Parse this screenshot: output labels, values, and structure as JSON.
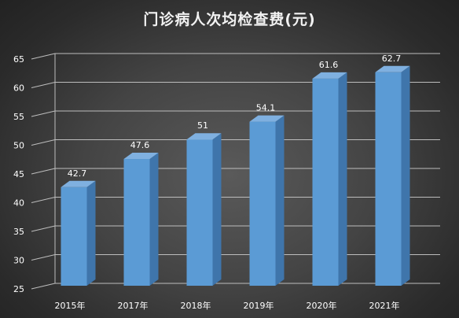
{
  "chart_data": {
    "type": "bar",
    "title": "门诊病人次均检查费(元)",
    "categories": [
      "2015年",
      "2017年",
      "2018年",
      "2019年",
      "2020年",
      "2021年"
    ],
    "values": [
      42.7,
      47.6,
      51,
      54.1,
      61.6,
      62.7
    ],
    "data_labels": [
      "42.7",
      "47.6",
      "51",
      "54.1",
      "61.6",
      "62.7"
    ],
    "y_ticks": [
      "25",
      "30",
      "35",
      "40",
      "45",
      "50",
      "55",
      "60",
      "65"
    ],
    "ylim": [
      25,
      65
    ],
    "xlabel": "",
    "ylabel": "",
    "grid": true,
    "legend": "none",
    "colors": {
      "bar_front": "#5b9bd5",
      "bar_side": "#3f75ab",
      "bar_top": "#7fb0e0",
      "gridline": "#bdbdbd",
      "text": "#ffffff"
    }
  }
}
